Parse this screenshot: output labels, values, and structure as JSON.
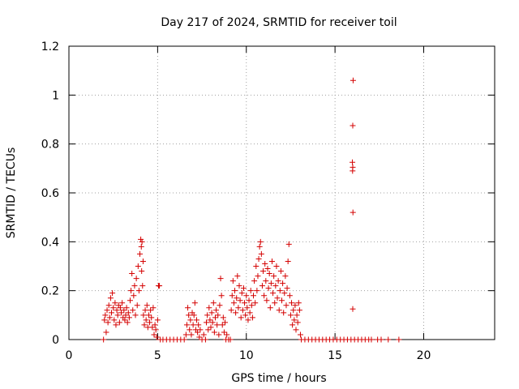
{
  "chart_data": {
    "type": "scatter",
    "title": "Day 217 of 2024, SRMTID for receiver toil",
    "xlabel": "GPS time / hours",
    "ylabel": "SRMTID / TECUs",
    "xlim": [
      0,
      24
    ],
    "ylim": [
      0,
      1.2
    ],
    "xticks": [
      0,
      5,
      10,
      15,
      20
    ],
    "xtick_labels": [
      "0",
      "5",
      "10",
      "15",
      "20"
    ],
    "yticks": [
      0,
      0.2,
      0.4,
      0.6,
      0.8,
      1,
      1.2
    ],
    "ytick_labels": [
      "0",
      "0.2",
      "0.4",
      "0.6",
      "0.8",
      "1",
      "1.2"
    ],
    "grid": true,
    "marker": "+",
    "marker_color": "#d40000",
    "series": [
      {
        "name": "SRMTID",
        "points": [
          [
            1.95,
            0
          ],
          [
            2.0,
            0.08
          ],
          [
            2.05,
            0.1
          ],
          [
            2.1,
            0.03
          ],
          [
            2.15,
            0.12
          ],
          [
            2.2,
            0.07
          ],
          [
            2.25,
            0.14
          ],
          [
            2.3,
            0.09
          ],
          [
            2.35,
            0.17
          ],
          [
            2.4,
            0.11
          ],
          [
            2.45,
            0.19
          ],
          [
            2.5,
            0.13
          ],
          [
            2.55,
            0.08
          ],
          [
            2.6,
            0.15
          ],
          [
            2.65,
            0.06
          ],
          [
            2.7,
            0.12
          ],
          [
            2.75,
            0.1
          ],
          [
            2.8,
            0.14
          ],
          [
            2.85,
            0.07
          ],
          [
            2.9,
            0.13
          ],
          [
            2.95,
            0.11
          ],
          [
            3.0,
            0.15
          ],
          [
            3.05,
            0.09
          ],
          [
            3.1,
            0.12
          ],
          [
            3.15,
            0.08
          ],
          [
            3.2,
            0.1
          ],
          [
            3.25,
            0.13
          ],
          [
            3.3,
            0.07
          ],
          [
            3.35,
            0.11
          ],
          [
            3.4,
            0.09
          ],
          [
            3.45,
            0.16
          ],
          [
            3.5,
            0.2
          ],
          [
            3.55,
            0.27
          ],
          [
            3.6,
            0.12
          ],
          [
            3.65,
            0.18
          ],
          [
            3.7,
            0.22
          ],
          [
            3.75,
            0.1
          ],
          [
            3.8,
            0.25
          ],
          [
            3.85,
            0.14
          ],
          [
            3.9,
            0.3
          ],
          [
            3.95,
            0.2
          ],
          [
            4.0,
            0.35
          ],
          [
            4.05,
            0.41
          ],
          [
            4.08,
            0.38
          ],
          [
            4.1,
            0.28
          ],
          [
            4.12,
            0.4
          ],
          [
            4.15,
            0.22
          ],
          [
            4.18,
            0.32
          ],
          [
            4.2,
            0.1
          ],
          [
            4.25,
            0.06
          ],
          [
            4.3,
            0.12
          ],
          [
            4.35,
            0.08
          ],
          [
            4.4,
            0.14
          ],
          [
            4.45,
            0.05
          ],
          [
            4.5,
            0.1
          ],
          [
            4.55,
            0.07
          ],
          [
            4.6,
            0.12
          ],
          [
            4.65,
            0.09
          ],
          [
            4.7,
            0.05
          ],
          [
            4.75,
            0.13
          ],
          [
            4.8,
            0.02
          ],
          [
            4.85,
            0.06
          ],
          [
            4.9,
            0.04
          ],
          [
            4.95,
            0.01
          ],
          [
            5.0,
            0.08
          ],
          [
            5.05,
            0.22
          ],
          [
            5.1,
            0.22
          ],
          [
            5.15,
            0.0
          ],
          [
            5.3,
            0.0
          ],
          [
            5.5,
            0.0
          ],
          [
            5.7,
            0.0
          ],
          [
            5.9,
            0.0
          ],
          [
            6.1,
            0.0
          ],
          [
            6.3,
            0.0
          ],
          [
            6.5,
            0.0
          ],
          [
            6.6,
            0.02
          ],
          [
            6.65,
            0.06
          ],
          [
            6.7,
            0.13
          ],
          [
            6.75,
            0.1
          ],
          [
            6.8,
            0.04
          ],
          [
            6.85,
            0.08
          ],
          [
            6.9,
            0.02
          ],
          [
            6.95,
            0.11
          ],
          [
            7.0,
            0.06
          ],
          [
            7.05,
            0.1
          ],
          [
            7.1,
            0.15
          ],
          [
            7.15,
            0.04
          ],
          [
            7.2,
            0.08
          ],
          [
            7.25,
            0.03
          ],
          [
            7.3,
            0.06
          ],
          [
            7.35,
            0.01
          ],
          [
            7.4,
            0.04
          ],
          [
            7.5,
            0.0
          ],
          [
            7.6,
            0.02
          ],
          [
            7.7,
            0.0
          ],
          [
            7.75,
            0.07
          ],
          [
            7.8,
            0.1
          ],
          [
            7.85,
            0.04
          ],
          [
            7.9,
            0.13
          ],
          [
            7.95,
            0.08
          ],
          [
            8.0,
            0.05
          ],
          [
            8.05,
            0.11
          ],
          [
            8.1,
            0.07
          ],
          [
            8.15,
            0.15
          ],
          [
            8.2,
            0.03
          ],
          [
            8.25,
            0.09
          ],
          [
            8.3,
            0.12
          ],
          [
            8.35,
            0.06
          ],
          [
            8.4,
            0.1
          ],
          [
            8.45,
            0.02
          ],
          [
            8.5,
            0.14
          ],
          [
            8.55,
            0.25
          ],
          [
            8.6,
            0.18
          ],
          [
            8.65,
            0.06
          ],
          [
            8.7,
            0.09
          ],
          [
            8.75,
            0.03
          ],
          [
            8.8,
            0.07
          ],
          [
            8.85,
            0.0
          ],
          [
            8.9,
            0.02
          ],
          [
            9.0,
            0.0
          ],
          [
            9.1,
            0.0
          ],
          [
            9.15,
            0.12
          ],
          [
            9.2,
            0.18
          ],
          [
            9.25,
            0.24
          ],
          [
            9.3,
            0.15
          ],
          [
            9.35,
            0.2
          ],
          [
            9.4,
            0.11
          ],
          [
            9.45,
            0.17
          ],
          [
            9.5,
            0.26
          ],
          [
            9.55,
            0.13
          ],
          [
            9.6,
            0.22
          ],
          [
            9.65,
            0.16
          ],
          [
            9.7,
            0.09
          ],
          [
            9.75,
            0.19
          ],
          [
            9.8,
            0.12
          ],
          [
            9.85,
            0.21
          ],
          [
            9.9,
            0.15
          ],
          [
            9.95,
            0.1
          ],
          [
            10.0,
            0.18
          ],
          [
            10.05,
            0.13
          ],
          [
            10.1,
            0.08
          ],
          [
            10.15,
            0.16
          ],
          [
            10.2,
            0.11
          ],
          [
            10.25,
            0.2
          ],
          [
            10.3,
            0.14
          ],
          [
            10.35,
            0.09
          ],
          [
            10.4,
            0.18
          ],
          [
            10.45,
            0.24
          ],
          [
            10.5,
            0.15
          ],
          [
            10.55,
            0.3
          ],
          [
            10.6,
            0.2
          ],
          [
            10.65,
            0.26
          ],
          [
            10.7,
            0.33
          ],
          [
            10.75,
            0.38
          ],
          [
            10.8,
            0.4
          ],
          [
            10.85,
            0.35
          ],
          [
            10.9,
            0.22
          ],
          [
            10.95,
            0.28
          ],
          [
            11.0,
            0.18
          ],
          [
            11.05,
            0.31
          ],
          [
            11.1,
            0.24
          ],
          [
            11.15,
            0.16
          ],
          [
            11.2,
            0.29
          ],
          [
            11.25,
            0.21
          ],
          [
            11.3,
            0.27
          ],
          [
            11.35,
            0.13
          ],
          [
            11.4,
            0.23
          ],
          [
            11.45,
            0.32
          ],
          [
            11.5,
            0.19
          ],
          [
            11.55,
            0.26
          ],
          [
            11.6,
            0.15
          ],
          [
            11.65,
            0.22
          ],
          [
            11.7,
            0.3
          ],
          [
            11.75,
            0.17
          ],
          [
            11.8,
            0.24
          ],
          [
            11.85,
            0.12
          ],
          [
            11.9,
            0.2
          ],
          [
            11.95,
            0.28
          ],
          [
            12.0,
            0.16
          ],
          [
            12.05,
            0.23
          ],
          [
            12.1,
            0.11
          ],
          [
            12.15,
            0.19
          ],
          [
            12.2,
            0.26
          ],
          [
            12.25,
            0.14
          ],
          [
            12.3,
            0.21
          ],
          [
            12.35,
            0.32
          ],
          [
            12.4,
            0.39
          ],
          [
            12.45,
            0.18
          ],
          [
            12.5,
            0.1
          ],
          [
            12.55,
            0.15
          ],
          [
            12.6,
            0.06
          ],
          [
            12.65,
            0.12
          ],
          [
            12.7,
            0.08
          ],
          [
            12.75,
            0.14
          ],
          [
            12.8,
            0.04
          ],
          [
            12.85,
            0.1
          ],
          [
            12.9,
            0.07
          ],
          [
            12.95,
            0.15
          ],
          [
            13.0,
            0.12
          ],
          [
            13.05,
            0.02
          ],
          [
            13.1,
            0.0
          ],
          [
            13.3,
            0.0
          ],
          [
            13.5,
            0.0
          ],
          [
            13.7,
            0.0
          ],
          [
            13.9,
            0.0
          ],
          [
            14.1,
            0.0
          ],
          [
            14.3,
            0.0
          ],
          [
            14.5,
            0.0
          ],
          [
            14.7,
            0.0
          ],
          [
            14.9,
            0.0
          ],
          [
            15.1,
            0.0
          ],
          [
            15.3,
            0.0
          ],
          [
            15.5,
            0.0
          ],
          [
            15.7,
            0.0
          ],
          [
            15.9,
            0.0
          ],
          [
            16.02,
            1.06
          ],
          [
            16.0,
            0.875
          ],
          [
            15.98,
            0.725
          ],
          [
            16.0,
            0.705
          ],
          [
            15.99,
            0.69
          ],
          [
            16.01,
            0.52
          ],
          [
            16.0,
            0.125
          ],
          [
            16.1,
            0.0
          ],
          [
            16.3,
            0.0
          ],
          [
            16.5,
            0.0
          ],
          [
            16.7,
            0.0
          ],
          [
            16.9,
            0.0
          ],
          [
            17.05,
            0.0
          ],
          [
            17.4,
            0.0
          ],
          [
            17.6,
            0.0
          ],
          [
            18.0,
            0.0
          ],
          [
            18.6,
            0.0
          ]
        ]
      }
    ]
  }
}
